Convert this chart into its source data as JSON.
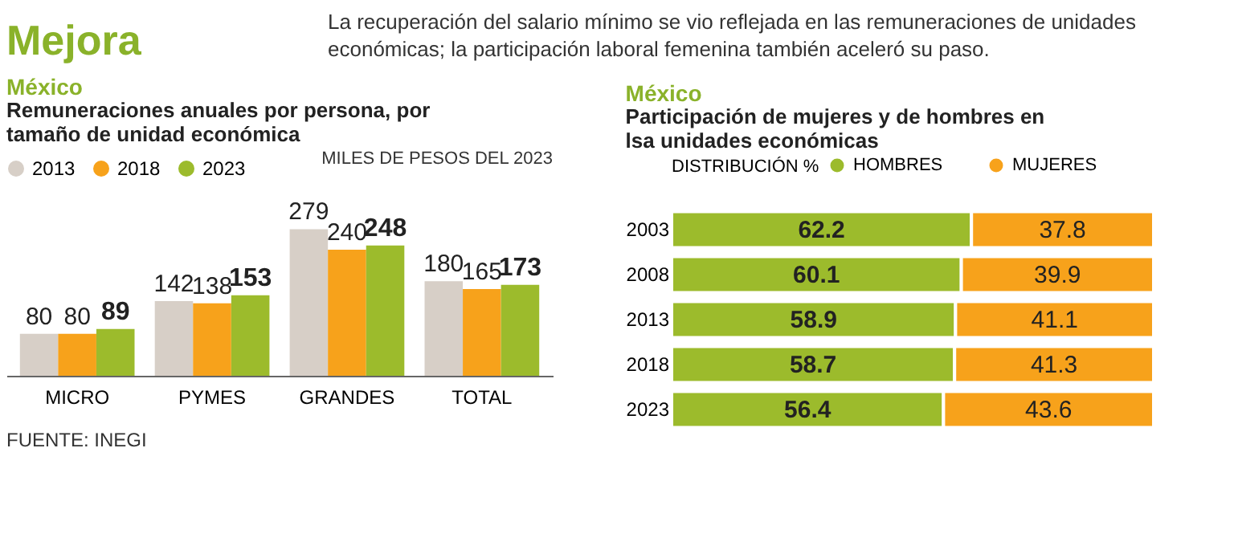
{
  "chart_data": [
    {
      "type": "other",
      "title": "Mejora",
      "annotations": [
        "La recuperación del salario mínimo se vio reflejada en las remuneraciones de unidades económicas; la participación laboral femenina también aceleró su paso."
      ]
    },
    {
      "type": "bar",
      "title": "México",
      "subtitle": "Remuneraciones anuales por persona, por tamaño de unidad económica",
      "annotations": [
        "MILES DE PESOS DEL 2023",
        "FUENTE: INEGI"
      ],
      "categories": [
        "MICRO",
        "PYMES",
        "GRANDES",
        "TOTAL"
      ],
      "series": [
        {
          "name": "2013",
          "color": "#d7cfc7",
          "values": [
            80,
            142,
            279,
            180
          ]
        },
        {
          "name": "2018",
          "color": "#f7a21b",
          "values": [
            80,
            138,
            240,
            165
          ]
        },
        {
          "name": "2023",
          "color": "#9cbb2c",
          "values": [
            89,
            153,
            248,
            173
          ]
        }
      ],
      "data_labels": true,
      "tick_labels": "x",
      "legend": "top left",
      "grid": false
    },
    {
      "type": "bar",
      "orientation": "horizontal",
      "stacked": true,
      "title": "México",
      "subtitle": "Participación de mujeres y de hombres en lsa unidades económicas",
      "legend_title": "DISTRIBUCIÓN %",
      "categories": [
        "2003",
        "2008",
        "2013",
        "2018",
        "2023"
      ],
      "series": [
        {
          "name": "HOMBRES",
          "color": "#9cbb2c",
          "values": [
            62.2,
            60.1,
            58.9,
            58.7,
            56.4
          ]
        },
        {
          "name": "MUJERES",
          "color": "#f7a21b",
          "values": [
            37.8,
            39.9,
            41.1,
            41.3,
            43.6
          ]
        }
      ],
      "data_labels": true,
      "tick_labels": "y",
      "legend": "top",
      "grid": false
    }
  ]
}
